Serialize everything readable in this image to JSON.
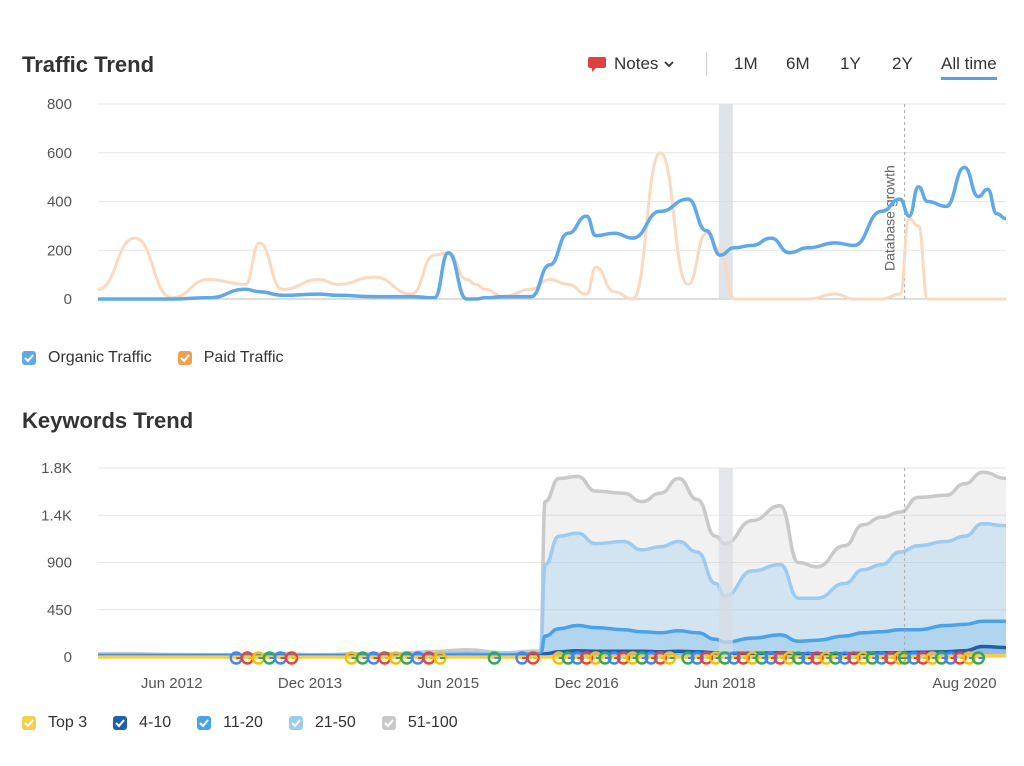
{
  "traffic": {
    "title": "Traffic Trend",
    "notes_label": "Notes",
    "ranges": [
      "1M",
      "6M",
      "1Y",
      "2Y",
      "All time"
    ],
    "active_range": "All time",
    "legend": [
      {
        "label": "Organic Traffic",
        "color": "#5fa8ea"
      },
      {
        "label": "Paid Traffic",
        "color": "#f0a050"
      }
    ]
  },
  "keywords": {
    "title": "Keywords Trend",
    "legend": [
      {
        "label": "Top 3",
        "color": "#f5cd4f"
      },
      {
        "label": "4-10",
        "color": "#1f5fae"
      },
      {
        "label": "11-20",
        "color": "#4aa3ea"
      },
      {
        "label": "21-50",
        "color": "#9ccbf2"
      },
      {
        "label": "51-100",
        "color": "#c9c9c9"
      }
    ]
  },
  "colors": {
    "organic": "#5fa8ea",
    "paid": "#fbd9bf",
    "top3": "#f5cd4f",
    "k4_10": "#1f5fae",
    "k11_20": "#4aa3ea",
    "k21_50": "#9ccbf2",
    "k51_100": "#c9c9c9"
  },
  "chart_data": [
    {
      "type": "line",
      "title": "Traffic Trend",
      "ylim": [
        0,
        800
      ],
      "yticks": [
        0,
        200,
        400,
        600,
        800
      ],
      "annotation": "Database growth",
      "x": [
        2011.2,
        2011.6,
        2012.0,
        2012.4,
        2012.8,
        2012.95,
        2013.2,
        2013.6,
        2013.8,
        2014.2,
        2014.6,
        2014.85,
        2015.0,
        2015.2,
        2015.3,
        2015.4,
        2015.6,
        2015.9,
        2016.1,
        2016.3,
        2016.5,
        2016.6,
        2016.8,
        2017.0,
        2017.3,
        2017.6,
        2017.8,
        2017.95,
        2018.1,
        2018.3,
        2018.5,
        2018.7,
        2018.9,
        2019.2,
        2019.4,
        2019.7,
        2019.9,
        2020.0,
        2020.1,
        2020.2,
        2020.4,
        2020.6,
        2020.75,
        2020.85,
        2020.95,
        2021.05
      ],
      "series": [
        {
          "name": "Organic Traffic",
          "values": [
            0,
            0,
            0,
            5,
            40,
            30,
            15,
            20,
            15,
            10,
            10,
            5,
            190,
            0,
            0,
            5,
            10,
            10,
            140,
            270,
            340,
            260,
            270,
            250,
            360,
            410,
            280,
            180,
            210,
            220,
            250,
            190,
            210,
            230,
            220,
            360,
            410,
            340,
            460,
            400,
            380,
            540,
            420,
            450,
            350,
            330
          ]
        },
        {
          "name": "Paid Traffic",
          "values": [
            40,
            250,
            5,
            80,
            60,
            230,
            40,
            80,
            60,
            90,
            20,
            180,
            190,
            80,
            60,
            40,
            10,
            40,
            80,
            60,
            20,
            130,
            30,
            0,
            600,
            60,
            270,
            200,
            0,
            0,
            0,
            0,
            0,
            20,
            0,
            0,
            20,
            330,
            300,
            0,
            0,
            0,
            0,
            0,
            0,
            0
          ]
        }
      ]
    },
    {
      "type": "area",
      "title": "Keywords Trend",
      "ylim": [
        0,
        1800
      ],
      "yticks": [
        "0",
        "450",
        "900",
        "1.4K",
        "1.8K"
      ],
      "xticks": [
        "Jun 2012",
        "Dec 2013",
        "Jun 2015",
        "Dec 2016",
        "Jun 2018",
        "Aug 2020"
      ],
      "x": [
        2011.2,
        2011.6,
        2012.0,
        2012.4,
        2012.8,
        2013.2,
        2013.6,
        2014.0,
        2014.4,
        2014.8,
        2015.2,
        2015.6,
        2016.0,
        2016.05,
        2016.2,
        2016.4,
        2016.6,
        2016.9,
        2017.1,
        2017.3,
        2017.5,
        2017.7,
        2017.9,
        2018.0,
        2018.3,
        2018.6,
        2018.8,
        2019.0,
        2019.3,
        2019.5,
        2019.7,
        2019.9,
        2020.1,
        2020.4,
        2020.6,
        2020.8,
        2021.05
      ],
      "series": [
        {
          "name": "Top 3",
          "values": [
            0,
            0,
            0,
            0,
            0,
            0,
            0,
            0,
            0,
            0,
            0,
            0,
            0,
            0,
            0,
            0,
            0,
            0,
            0,
            0,
            0,
            0,
            0,
            0,
            0,
            0,
            0,
            0,
            0,
            0,
            0,
            0,
            0,
            0,
            5,
            10,
            15
          ]
        },
        {
          "name": "4-10",
          "values": [
            5,
            5,
            5,
            5,
            5,
            5,
            5,
            5,
            5,
            5,
            5,
            5,
            10,
            30,
            50,
            60,
            55,
            55,
            55,
            50,
            55,
            50,
            40,
            35,
            35,
            40,
            30,
            30,
            30,
            35,
            40,
            40,
            45,
            50,
            60,
            100,
            90
          ]
        },
        {
          "name": "11-20",
          "values": [
            15,
            15,
            15,
            15,
            15,
            15,
            15,
            15,
            15,
            20,
            25,
            20,
            30,
            200,
            270,
            300,
            280,
            260,
            240,
            230,
            250,
            230,
            170,
            140,
            180,
            210,
            150,
            160,
            200,
            230,
            240,
            260,
            260,
            300,
            310,
            340,
            340
          ]
        },
        {
          "name": "21-50",
          "values": [
            20,
            20,
            20,
            20,
            20,
            20,
            20,
            20,
            20,
            30,
            40,
            30,
            40,
            880,
            1150,
            1180,
            1080,
            1100,
            1020,
            1050,
            1100,
            1000,
            700,
            580,
            820,
            880,
            560,
            560,
            700,
            830,
            880,
            1000,
            1060,
            1100,
            1150,
            1270,
            1250
          ]
        },
        {
          "name": "51-100",
          "values": [
            30,
            30,
            25,
            20,
            20,
            30,
            20,
            30,
            30,
            50,
            70,
            40,
            60,
            1480,
            1700,
            1720,
            1580,
            1560,
            1480,
            1560,
            1700,
            1500,
            1150,
            1080,
            1300,
            1440,
            900,
            860,
            1060,
            1260,
            1330,
            1380,
            1520,
            1540,
            1650,
            1760,
            1700
          ]
        }
      ]
    }
  ]
}
